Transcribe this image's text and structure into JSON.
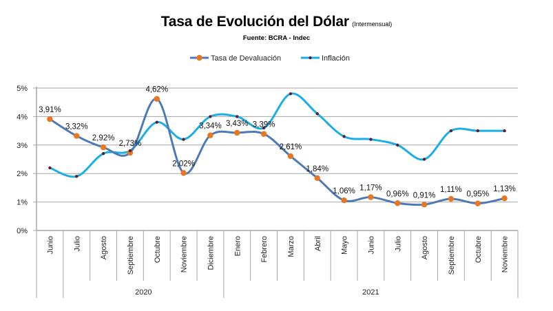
{
  "title": "Tasa de Evolución del Dólar",
  "title_suffix": "(Intermensual)",
  "source": "Fuente: BCRA - Indec",
  "colors": {
    "devaluacion_line": "#4E79B8",
    "devaluacion_marker": "#E87722",
    "inflacion_line": "#1BAEE5",
    "inflacion_marker": "#5C1F33",
    "grid": "#A6A6A6",
    "axis": "#A6A6A6"
  },
  "chart_data": {
    "type": "line",
    "title": "Tasa de Evolución del Dólar (Intermensual)",
    "subtitle": "Fuente: BCRA - Indec",
    "xlabel": "",
    "ylabel": "",
    "ylim": [
      0,
      5
    ],
    "yticks": [
      "0%",
      "1%",
      "2%",
      "3%",
      "4%",
      "5%"
    ],
    "ytick_values": [
      0,
      1,
      2,
      3,
      4,
      5
    ],
    "grid": true,
    "legend_position": "top-center",
    "categories": [
      "Junio",
      "Julio",
      "Agosto",
      "Septiembre",
      "Octubre",
      "Noviembre",
      "Diciembre",
      "Enero",
      "Febrero",
      "Marzo",
      "Abril",
      "Mayo",
      "Junio",
      "Julio",
      "Agosto",
      "Septiembre",
      "Octubre",
      "Noviembre"
    ],
    "groups": [
      {
        "label": "",
        "start": 0,
        "end": 0
      },
      {
        "label": "2020",
        "start": 1,
        "end": 6
      },
      {
        "label": "2021",
        "start": 7,
        "end": 17
      }
    ],
    "series": [
      {
        "name": "Tasa de Devaluación",
        "values": [
          3.91,
          3.32,
          2.92,
          2.73,
          4.62,
          2.02,
          3.34,
          3.43,
          3.39,
          2.61,
          1.84,
          1.06,
          1.17,
          0.96,
          0.91,
          1.11,
          0.95,
          1.13
        ],
        "data_labels": [
          "3,91%",
          "3,32%",
          "2,92%",
          "2,73%",
          "4,62%",
          "2,02%",
          "3,34%",
          "3,43%",
          "3,39%",
          "2,61%",
          "1,84%",
          "1,06%",
          "1,17%",
          "0,96%",
          "0,91%",
          "1,11%",
          "0,95%",
          "1,13%"
        ]
      },
      {
        "name": "Inflación",
        "values": [
          2.2,
          1.9,
          2.7,
          2.8,
          3.8,
          3.2,
          4.0,
          4.0,
          3.6,
          4.8,
          4.1,
          3.3,
          3.2,
          3.0,
          2.5,
          3.5,
          3.5,
          3.5
        ]
      }
    ]
  }
}
